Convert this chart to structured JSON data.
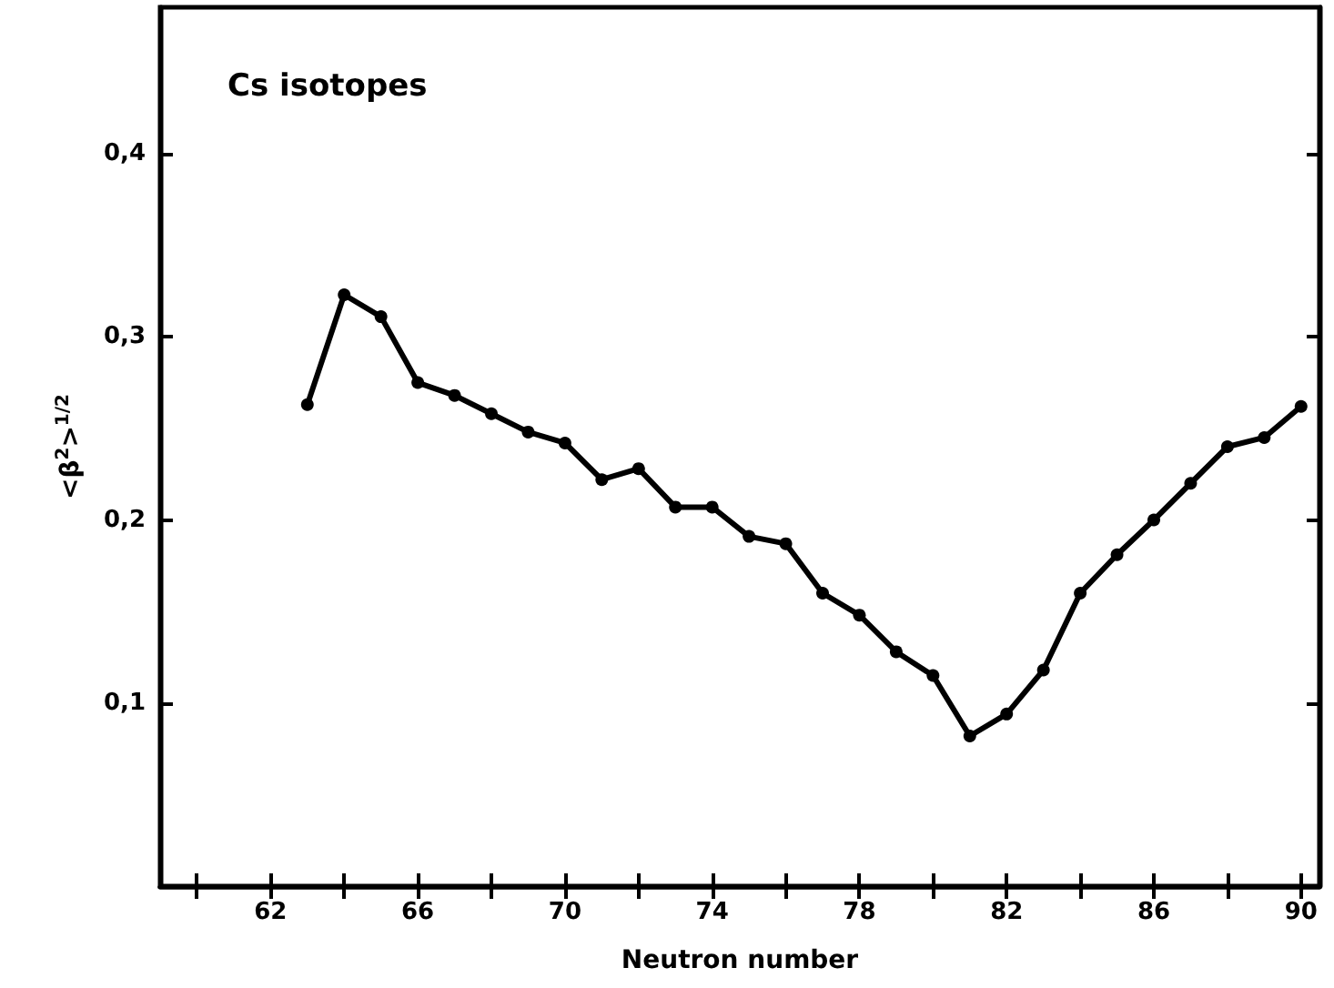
{
  "chart_data": {
    "type": "line",
    "title": "Cs isotopes",
    "xlabel": "Neutron number",
    "ylabel": "<β$^{2}$>$^{1/2}$",
    "x": [
      63,
      64,
      65,
      66,
      67,
      68,
      69,
      70,
      71,
      72,
      73,
      74,
      75,
      76,
      77,
      78,
      79,
      80,
      81,
      82,
      83,
      84,
      85,
      86,
      87,
      88,
      89,
      90
    ],
    "series": [
      {
        "color": "#000000",
        "values": [
          0.263,
          0.323,
          0.311,
          0.275,
          0.268,
          0.258,
          0.248,
          0.242,
          0.222,
          0.228,
          0.207,
          0.207,
          0.191,
          0.187,
          0.16,
          0.148,
          0.128,
          0.115,
          0.082,
          0.094,
          0.118,
          0.16,
          0.181,
          0.2,
          0.22,
          0.24,
          0.245,
          0.262
        ]
      }
    ],
    "xlim": [
      59,
      90.5
    ],
    "xticks": [
      {
        "value": 60,
        "label": null
      },
      62,
      {
        "value": 64,
        "label": null
      },
      66,
      {
        "value": 68,
        "label": null
      },
      70,
      {
        "value": 72,
        "label": null
      },
      74,
      {
        "value": 76,
        "label": null
      },
      78,
      {
        "value": 80,
        "label": null
      },
      82,
      {
        "value": 84,
        "label": null
      },
      86,
      {
        "value": 88,
        "label": null
      },
      90
    ],
    "ylim": [
      0,
      0.48
    ],
    "yticks": [
      {
        "value": 0.1,
        "label": "0,1"
      },
      {
        "value": 0.2,
        "label": "0,2"
      },
      {
        "value": 0.3,
        "label": "0,3"
      },
      {
        "value": 0.4,
        "label": "0,4"
      }
    ],
    "grid": false,
    "marker": "circle",
    "line_style": "solid"
  }
}
